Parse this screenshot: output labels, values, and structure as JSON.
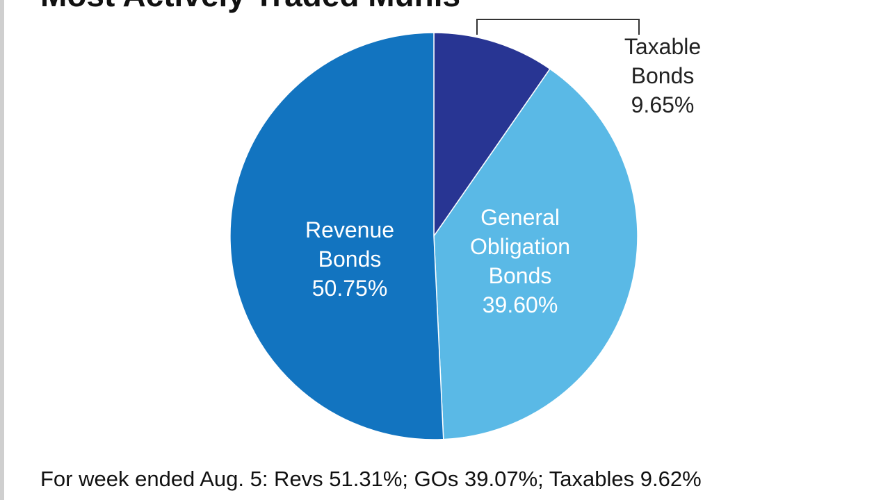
{
  "chart_title": "Most Actively Traded Munis",
  "footnote": "For week ended Aug. 5: Revs 51.31%; GOs 39.07%; Taxables 9.62%",
  "chart_data": {
    "type": "pie",
    "title": "Most Actively Traded Munis",
    "slices": [
      {
        "label_lines": [
          "Taxable",
          "Bonds",
          "9.65%"
        ],
        "value": 9.65,
        "color": "#283593",
        "label_color": "#222222",
        "label_position": "outside-top-right"
      },
      {
        "label_lines": [
          "General",
          "Obligation",
          "Bonds",
          "39.60%"
        ],
        "value": 39.6,
        "color": "#5ab9e6",
        "label_color": "#ffffff",
        "label_position": "inside"
      },
      {
        "label_lines": [
          "Revenue",
          "Bonds",
          "50.75%"
        ],
        "value": 50.75,
        "color": "#1274c0",
        "label_color": "#ffffff",
        "label_position": "inside"
      }
    ],
    "footnote": "For week ended Aug. 5: Revs 51.31%; GOs 39.07%; Taxables 9.62%"
  }
}
